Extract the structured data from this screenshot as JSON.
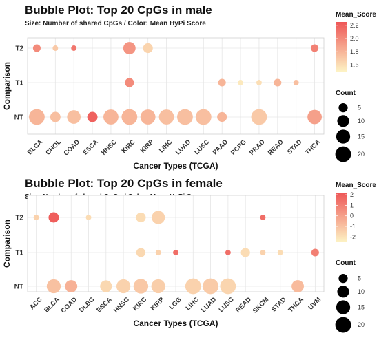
{
  "chart_data": [
    {
      "type": "scatter",
      "title": "Bubble Plot: Top 20 CpGs in male",
      "subtitle": "Size: Number of shared CpGs / Color: Mean HyPi Score",
      "xlabel": "Cancer Types (TCGA)",
      "ylabel": "Comparison",
      "categories": [
        "BLCA",
        "CHOL",
        "COAD",
        "ESCA",
        "HNSC",
        "KIRC",
        "KIRP",
        "LIHC",
        "LUAD",
        "LUSC",
        "PAAD",
        "PCPG",
        "PRAD",
        "READ",
        "STAD",
        "THCA"
      ],
      "y_categories": [
        "NT",
        "T1",
        "T2"
      ],
      "color_legend": {
        "title": "Mean_Score",
        "range": [
          1.5,
          2.25
        ],
        "ticks": [
          1.6,
          1.8,
          2.0,
          2.2
        ],
        "tick_labels": [
          "1.6",
          "1.8",
          "2.0",
          "2.2"
        ],
        "low_color": "#fdf3c4",
        "high_color": "#ee5757"
      },
      "size_legend": {
        "title": "Count",
        "values": [
          5,
          10,
          15,
          20
        ],
        "labels": [
          "5",
          "10",
          "15",
          "20"
        ]
      },
      "points": [
        {
          "x": "BLCA",
          "y": "T2",
          "count": 3,
          "score": 2.0
        },
        {
          "x": "CHOL",
          "y": "T2",
          "count": 1,
          "score": 1.7
        },
        {
          "x": "COAD",
          "y": "T2",
          "count": 1,
          "score": 2.1
        },
        {
          "x": "KIRC",
          "y": "T2",
          "count": 11,
          "score": 1.95
        },
        {
          "x": "KIRP",
          "y": "T2",
          "count": 6,
          "score": 1.65
        },
        {
          "x": "THCA",
          "y": "T2",
          "count": 3,
          "score": 2.05
        },
        {
          "x": "KIRC",
          "y": "T1",
          "count": 5,
          "score": 2.0
        },
        {
          "x": "PAAD",
          "y": "T1",
          "count": 3,
          "score": 1.8
        },
        {
          "x": "PCPG",
          "y": "T1",
          "count": 1,
          "score": 1.55
        },
        {
          "x": "PRAD",
          "y": "T1",
          "count": 1,
          "score": 1.6
        },
        {
          "x": "READ",
          "y": "T1",
          "count": 3,
          "score": 1.8
        },
        {
          "x": "STAD",
          "y": "T1",
          "count": 1,
          "score": 1.75
        },
        {
          "x": "BLCA",
          "y": "NT",
          "count": 20,
          "score": 1.8
        },
        {
          "x": "CHOL",
          "y": "NT",
          "count": 7,
          "score": 1.75
        },
        {
          "x": "COAD",
          "y": "NT",
          "count": 14,
          "score": 1.75
        },
        {
          "x": "ESCA",
          "y": "NT",
          "count": 7,
          "score": 2.2
        },
        {
          "x": "HNSC",
          "y": "NT",
          "count": 18,
          "score": 1.8
        },
        {
          "x": "KIRC",
          "y": "NT",
          "count": 20,
          "score": 1.8
        },
        {
          "x": "KIRP",
          "y": "NT",
          "count": 18,
          "score": 1.8
        },
        {
          "x": "LIHC",
          "y": "NT",
          "count": 18,
          "score": 1.75
        },
        {
          "x": "LUAD",
          "y": "NT",
          "count": 20,
          "score": 1.75
        },
        {
          "x": "LUSC",
          "y": "NT",
          "count": 20,
          "score": 1.75
        },
        {
          "x": "PAAD",
          "y": "NT",
          "count": 6,
          "score": 1.8
        },
        {
          "x": "PRAD",
          "y": "NT",
          "count": 20,
          "score": 1.7
        },
        {
          "x": "THCA",
          "y": "NT",
          "count": 16,
          "score": 1.9
        }
      ]
    },
    {
      "type": "scatter",
      "title": "Bubble Plot: Top 20 CpGs in female",
      "subtitle": "Size: Number of shared CpGs / Color: Mean HyPi Score",
      "xlabel": "Cancer Types (TCGA)",
      "ylabel": "Comparison",
      "categories": [
        "ACC",
        "BLCA",
        "COAD",
        "DLBC",
        "ESCA",
        "HNSC",
        "KIRC",
        "KIRP",
        "LGG",
        "LIHC",
        "LUAD",
        "LUSC",
        "READ",
        "SKCM",
        "STAD",
        "THCA",
        "UVM"
      ],
      "y_categories": [
        "NT",
        "T1",
        "T2"
      ],
      "color_legend": {
        "title": "Mean_Score",
        "range": [
          -2.5,
          2.2
        ],
        "ticks": [
          -2,
          -1,
          0,
          1,
          2
        ],
        "tick_labels": [
          "-2",
          "-1",
          "0",
          "1",
          "2"
        ],
        "low_color": "#fdf3c4",
        "high_color": "#ee5757"
      },
      "size_legend": {
        "title": "Count",
        "values": [
          5,
          10,
          15,
          20
        ],
        "labels": [
          "5",
          "10",
          "15",
          "20"
        ]
      },
      "points": [
        {
          "x": "ACC",
          "y": "T2",
          "count": 1,
          "score": -1.5
        },
        {
          "x": "BLCA",
          "y": "T2",
          "count": 7,
          "score": 2.0
        },
        {
          "x": "DLBC",
          "y": "T2",
          "count": 1,
          "score": -1.8
        },
        {
          "x": "KIRC",
          "y": "T2",
          "count": 6,
          "score": -1.8
        },
        {
          "x": "KIRP",
          "y": "T2",
          "count": 13,
          "score": -1.5
        },
        {
          "x": "SKCM",
          "y": "T2",
          "count": 1,
          "score": 1.5
        },
        {
          "x": "KIRC",
          "y": "T1",
          "count": 5,
          "score": -1.7
        },
        {
          "x": "KIRP",
          "y": "T1",
          "count": 1,
          "score": -1.5
        },
        {
          "x": "LGG",
          "y": "T1",
          "count": 1,
          "score": 1.5
        },
        {
          "x": "LUSC",
          "y": "T1",
          "count": 1,
          "score": 1.5
        },
        {
          "x": "READ",
          "y": "T1",
          "count": 5,
          "score": -1.8
        },
        {
          "x": "SKCM",
          "y": "T1",
          "count": 1,
          "score": -1.5
        },
        {
          "x": "STAD",
          "y": "T1",
          "count": 1,
          "score": -1.8
        },
        {
          "x": "UVM",
          "y": "T1",
          "count": 3,
          "score": 1.0
        },
        {
          "x": "BLCA",
          "y": "NT",
          "count": 15,
          "score": -1.0
        },
        {
          "x": "COAD",
          "y": "NT",
          "count": 11,
          "score": -0.5
        },
        {
          "x": "ESCA",
          "y": "NT",
          "count": 10,
          "score": -1.7
        },
        {
          "x": "HNSC",
          "y": "NT",
          "count": 15,
          "score": -1.5
        },
        {
          "x": "KIRC",
          "y": "NT",
          "count": 17,
          "score": -1.2
        },
        {
          "x": "KIRP",
          "y": "NT",
          "count": 15,
          "score": -1.4
        },
        {
          "x": "LIHC",
          "y": "NT",
          "count": 20,
          "score": -1.5
        },
        {
          "x": "LUAD",
          "y": "NT",
          "count": 20,
          "score": -1.3
        },
        {
          "x": "LUSC",
          "y": "NT",
          "count": 20,
          "score": -1.6
        },
        {
          "x": "THCA",
          "y": "NT",
          "count": 11,
          "score": -0.8
        }
      ]
    }
  ]
}
